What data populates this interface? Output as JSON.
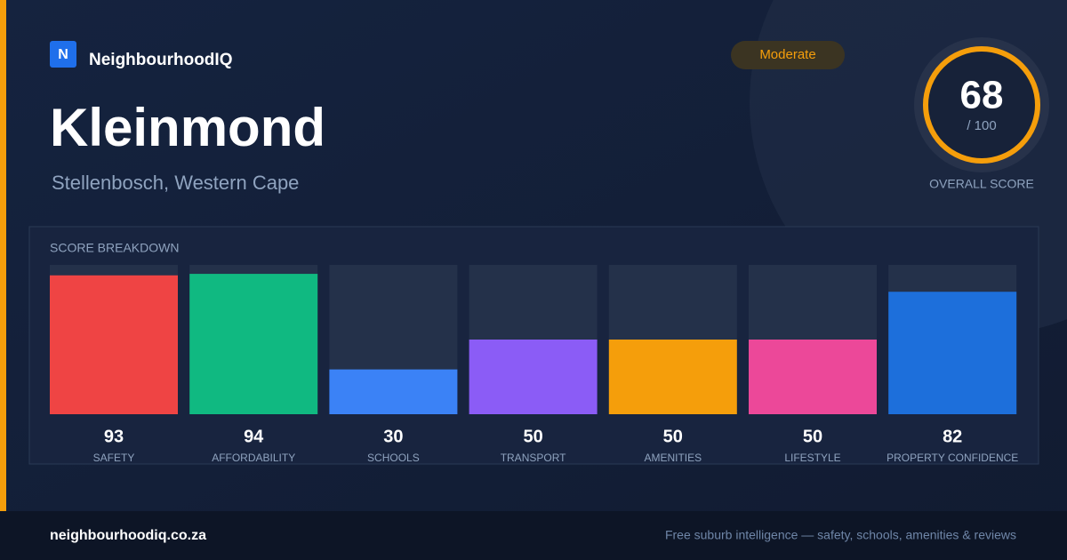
{
  "brand": {
    "logo": "N",
    "name": "NeighbourhoodIQ"
  },
  "badge": "Moderate",
  "suburb": "Kleinmond",
  "location": "Stellenbosch, Western Cape",
  "score": {
    "value": 68,
    "max_label": "/ 100",
    "label": "OVERALL SCORE"
  },
  "chart_data": {
    "type": "bar",
    "title": "SCORE BREAKDOWN",
    "categories": [
      "SAFETY",
      "AFFORDABILITY",
      "SCHOOLS",
      "TRANSPORT",
      "AMENITIES",
      "LIFESTYLE",
      "PROPERTY CONFIDENCE"
    ],
    "values": [
      93,
      94,
      30,
      50,
      50,
      50,
      82
    ],
    "colors": [
      "#ef4444",
      "#10b981",
      "#3b82f6",
      "#8b5cf6",
      "#f59e0b",
      "#ec4899",
      "#1d6fdb"
    ],
    "ylim": [
      0,
      100
    ]
  },
  "footer": {
    "url": "neighbourhoodiq.co.za",
    "tagline": "Free suburb intelligence — safety, schools, amenities & reviews"
  }
}
